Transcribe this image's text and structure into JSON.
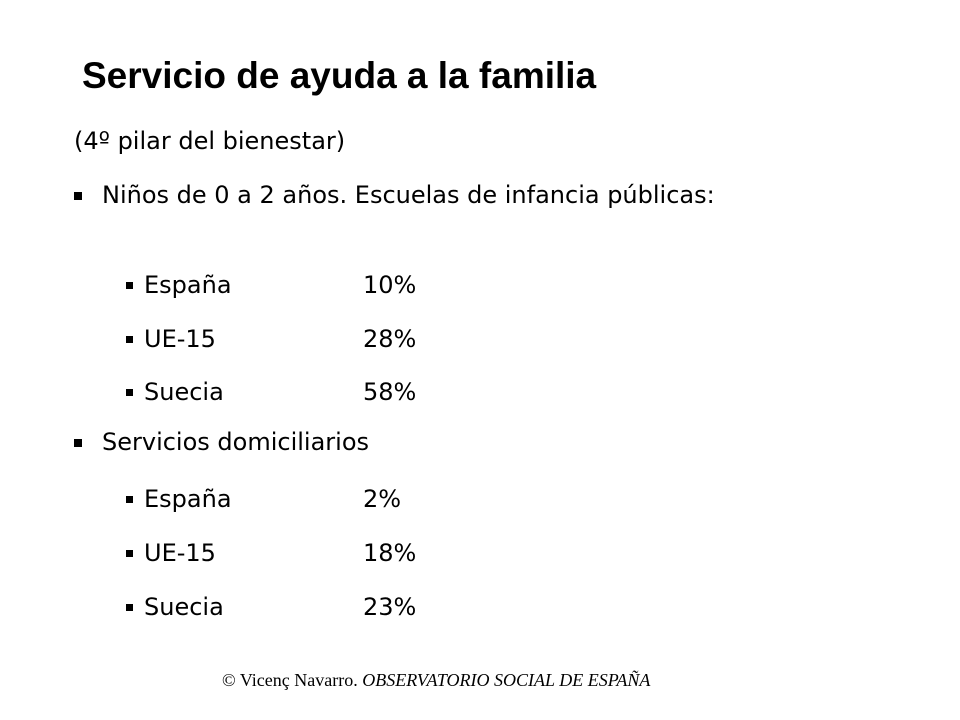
{
  "slide": {
    "title": "Servicio de ayuda a la familia",
    "subtitle": "(4º pilar del bienestar)",
    "sections": [
      {
        "heading": "Niños de 0 a 2 años. Escuelas de infancia públicas:",
        "rows": [
          {
            "country": "España",
            "value": "10%"
          },
          {
            "country": "UE-15",
            "value": "28%"
          },
          {
            "country": "Suecia",
            "value": "58%"
          }
        ]
      },
      {
        "heading": "Servicios domiciliarios",
        "rows": [
          {
            "country": "España",
            "value": "2%"
          },
          {
            "country": "UE-15",
            "value": "18%"
          },
          {
            "country": "Suecia",
            "value": "23%"
          }
        ]
      }
    ],
    "footer": {
      "author": "© Vicenç Navarro.",
      "organization": "OBSERVATORIO SOCIAL DE ESPAÑA"
    }
  }
}
